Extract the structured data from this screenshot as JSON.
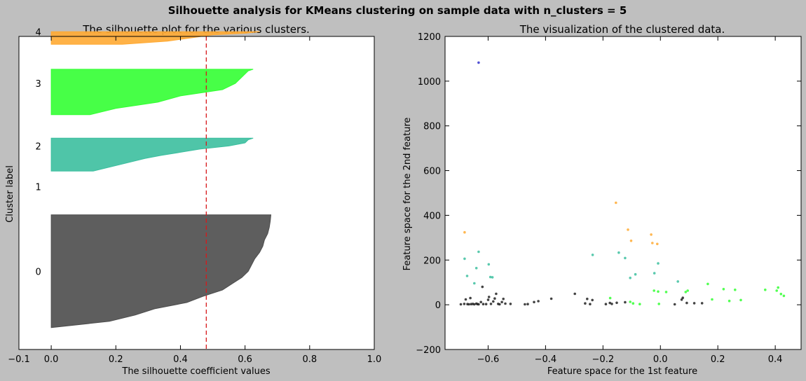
{
  "figure": {
    "suptitle": "Silhouette analysis for KMeans clustering on sample data with n_clusters = 5",
    "background": "#bfbfbf"
  },
  "chart_data": [
    {
      "type": "area",
      "title": "The silhouette plot for the various clusters.",
      "xlabel": "The silhouette coefficient values",
      "ylabel": "Cluster label",
      "xlim": [
        -0.1,
        1.0
      ],
      "ylim": [
        0,
        100
      ],
      "xticks": [
        "−0.1",
        "0.0",
        "0.2",
        "0.4",
        "0.6",
        "0.8",
        "1.0"
      ],
      "xtick_values": [
        -0.1,
        0.0,
        0.2,
        0.4,
        0.6,
        0.8,
        1.0
      ],
      "cluster_labels": [
        {
          "label": "0",
          "y": 25
        },
        {
          "label": "1",
          "y": 52
        },
        {
          "label": "2",
          "y": 65
        },
        {
          "label": "3",
          "y": 85
        },
        {
          "label": "4",
          "y": 101.5
        }
      ],
      "avg_silhouette": 0.48,
      "avg_line_color": "#d7191c",
      "clusters": [
        {
          "label": "0",
          "color": "#4d4d4d",
          "y_lower": 7,
          "y_upper": 43,
          "profile": [
            [
              0,
              0.0
            ],
            [
              2,
              0.18
            ],
            [
              4,
              0.26
            ],
            [
              6,
              0.32
            ],
            [
              8,
              0.42
            ],
            [
              10,
              0.47
            ],
            [
              12,
              0.53
            ],
            [
              14,
              0.56
            ],
            [
              16,
              0.59
            ],
            [
              18,
              0.61
            ],
            [
              20,
              0.62
            ],
            [
              22,
              0.63
            ],
            [
              24,
              0.645
            ],
            [
              26,
              0.655
            ],
            [
              28,
              0.66
            ],
            [
              30,
              0.67
            ],
            [
              32,
              0.675
            ],
            [
              34,
              0.678
            ],
            [
              36,
              0.68
            ]
          ]
        },
        {
          "label": "1",
          "color": "#ffffff",
          "y_lower": 52,
          "y_upper": 52,
          "profile": []
        },
        {
          "label": "2",
          "color": "#3cbf9f",
          "y_lower": 57,
          "y_upper": 67.5,
          "profile": [
            [
              0,
              0.13
            ],
            [
              2,
              0.21
            ],
            [
              4,
              0.29
            ],
            [
              5,
              0.34
            ],
            [
              6,
              0.4
            ],
            [
              7,
              0.46
            ],
            [
              8,
              0.55
            ],
            [
              9,
              0.6
            ],
            [
              10,
              0.61
            ],
            [
              10.5,
              0.625
            ]
          ]
        },
        {
          "label": "3",
          "color": "#33ff33",
          "y_lower": 75,
          "y_upper": 89.5,
          "profile": [
            [
              0,
              0.12
            ],
            [
              2,
              0.2
            ],
            [
              4,
              0.33
            ],
            [
              6,
              0.4
            ],
            [
              8,
              0.53
            ],
            [
              10,
              0.57
            ],
            [
              12,
              0.59
            ],
            [
              13,
              0.6
            ],
            [
              14,
              0.61
            ],
            [
              14.5,
              0.625
            ]
          ]
        },
        {
          "label": "4",
          "color": "#ffaa33",
          "y_lower": 97.5,
          "y_upper": 101.5,
          "profile": [
            [
              0,
              0.22
            ],
            [
              1,
              0.36
            ],
            [
              2,
              0.43
            ],
            [
              3,
              0.5
            ],
            [
              3.5,
              0.6
            ],
            [
              4,
              0.645
            ]
          ]
        }
      ]
    },
    {
      "type": "scatter",
      "title": "The visualization of the clustered data.",
      "xlabel": "Feature space for the 1st feature",
      "ylabel": "Feature space for the 2nd feature",
      "xlim": [
        -0.75,
        0.49
      ],
      "ylim": [
        -200,
        1200
      ],
      "xticks": [
        "−0.6",
        "−0.4",
        "−0.2",
        "0.0",
        "0.2",
        "0.4"
      ],
      "xtick_values": [
        -0.6,
        -0.4,
        -0.2,
        0.0,
        0.2,
        0.4
      ],
      "yticks": [
        "−200",
        "0",
        "200",
        "400",
        "600",
        "800",
        "1000",
        "1200"
      ],
      "ytick_values": [
        -200,
        0,
        200,
        400,
        600,
        800,
        1000,
        1200
      ],
      "series": [
        {
          "color": "#222222",
          "points": [
            [
              -0.695,
              2
            ],
            [
              -0.683,
              4
            ],
            [
              -0.678,
              24
            ],
            [
              -0.672,
              3
            ],
            [
              -0.667,
              2
            ],
            [
              -0.662,
              30
            ],
            [
              -0.659,
              3
            ],
            [
              -0.653,
              4
            ],
            [
              -0.648,
              2
            ],
            [
              -0.641,
              5
            ],
            [
              -0.637,
              3
            ],
            [
              -0.633,
              2
            ],
            [
              -0.625,
              12
            ],
            [
              -0.62,
              80
            ],
            [
              -0.617,
              3
            ],
            [
              -0.607,
              3
            ],
            [
              -0.6,
              22
            ],
            [
              -0.597,
              35
            ],
            [
              -0.59,
              4
            ],
            [
              -0.582,
              15
            ],
            [
              -0.577,
              28
            ],
            [
              -0.572,
              49
            ],
            [
              -0.565,
              4
            ],
            [
              -0.56,
              2
            ],
            [
              -0.552,
              12
            ],
            [
              -0.547,
              26
            ],
            [
              -0.54,
              5
            ],
            [
              -0.522,
              4
            ],
            [
              -0.472,
              2
            ],
            [
              -0.462,
              3
            ],
            [
              -0.44,
              12
            ],
            [
              -0.425,
              16
            ],
            [
              -0.38,
              27
            ],
            [
              -0.298,
              49
            ],
            [
              -0.262,
              6
            ],
            [
              -0.255,
              26
            ],
            [
              -0.245,
              3
            ],
            [
              -0.237,
              21
            ],
            [
              -0.19,
              3
            ],
            [
              -0.176,
              8
            ],
            [
              -0.169,
              4
            ],
            [
              -0.152,
              9
            ],
            [
              -0.123,
              11
            ],
            [
              0.05,
              2
            ],
            [
              0.074,
              23
            ],
            [
              0.078,
              31
            ],
            [
              0.092,
              8
            ],
            [
              0.118,
              7
            ],
            [
              0.145,
              7
            ]
          ]
        },
        {
          "color": "#3333cc",
          "points": [
            [
              -0.633,
              1083
            ]
          ]
        },
        {
          "color": "#3cbf9f",
          "points": [
            [
              -0.682,
              206
            ],
            [
              -0.673,
              129
            ],
            [
              -0.648,
              96
            ],
            [
              -0.641,
              164
            ],
            [
              -0.633,
              237
            ],
            [
              -0.598,
              181
            ],
            [
              -0.592,
              124
            ],
            [
              -0.585,
              123
            ],
            [
              -0.236,
              223
            ],
            [
              -0.145,
              233
            ],
            [
              -0.123,
              209
            ],
            [
              -0.105,
              120
            ],
            [
              -0.087,
              136
            ],
            [
              -0.021,
              141
            ],
            [
              -0.008,
              185
            ],
            [
              0.061,
              104
            ]
          ]
        },
        {
          "color": "#33ff33",
          "points": [
            [
              -0.175,
              30
            ],
            [
              -0.105,
              13
            ],
            [
              -0.095,
              6
            ],
            [
              -0.072,
              3
            ],
            [
              -0.022,
              63
            ],
            [
              -0.008,
              59
            ],
            [
              -0.005,
              4
            ],
            [
              0.02,
              57
            ],
            [
              0.088,
              57
            ],
            [
              0.095,
              63
            ],
            [
              0.165,
              93
            ],
            [
              0.18,
              24
            ],
            [
              0.22,
              70
            ],
            [
              0.24,
              17
            ],
            [
              0.26,
              67
            ],
            [
              0.28,
              21
            ],
            [
              0.365,
              67
            ],
            [
              0.405,
              63
            ],
            [
              0.41,
              77
            ],
            [
              0.42,
              48
            ],
            [
              0.43,
              40
            ]
          ]
        },
        {
          "color": "#ffaa33",
          "points": [
            [
              -0.682,
              324
            ],
            [
              -0.155,
              456
            ],
            [
              -0.113,
              336
            ],
            [
              -0.102,
              286
            ],
            [
              -0.032,
              314
            ],
            [
              -0.028,
              276
            ],
            [
              -0.011,
              272
            ]
          ]
        }
      ]
    }
  ]
}
